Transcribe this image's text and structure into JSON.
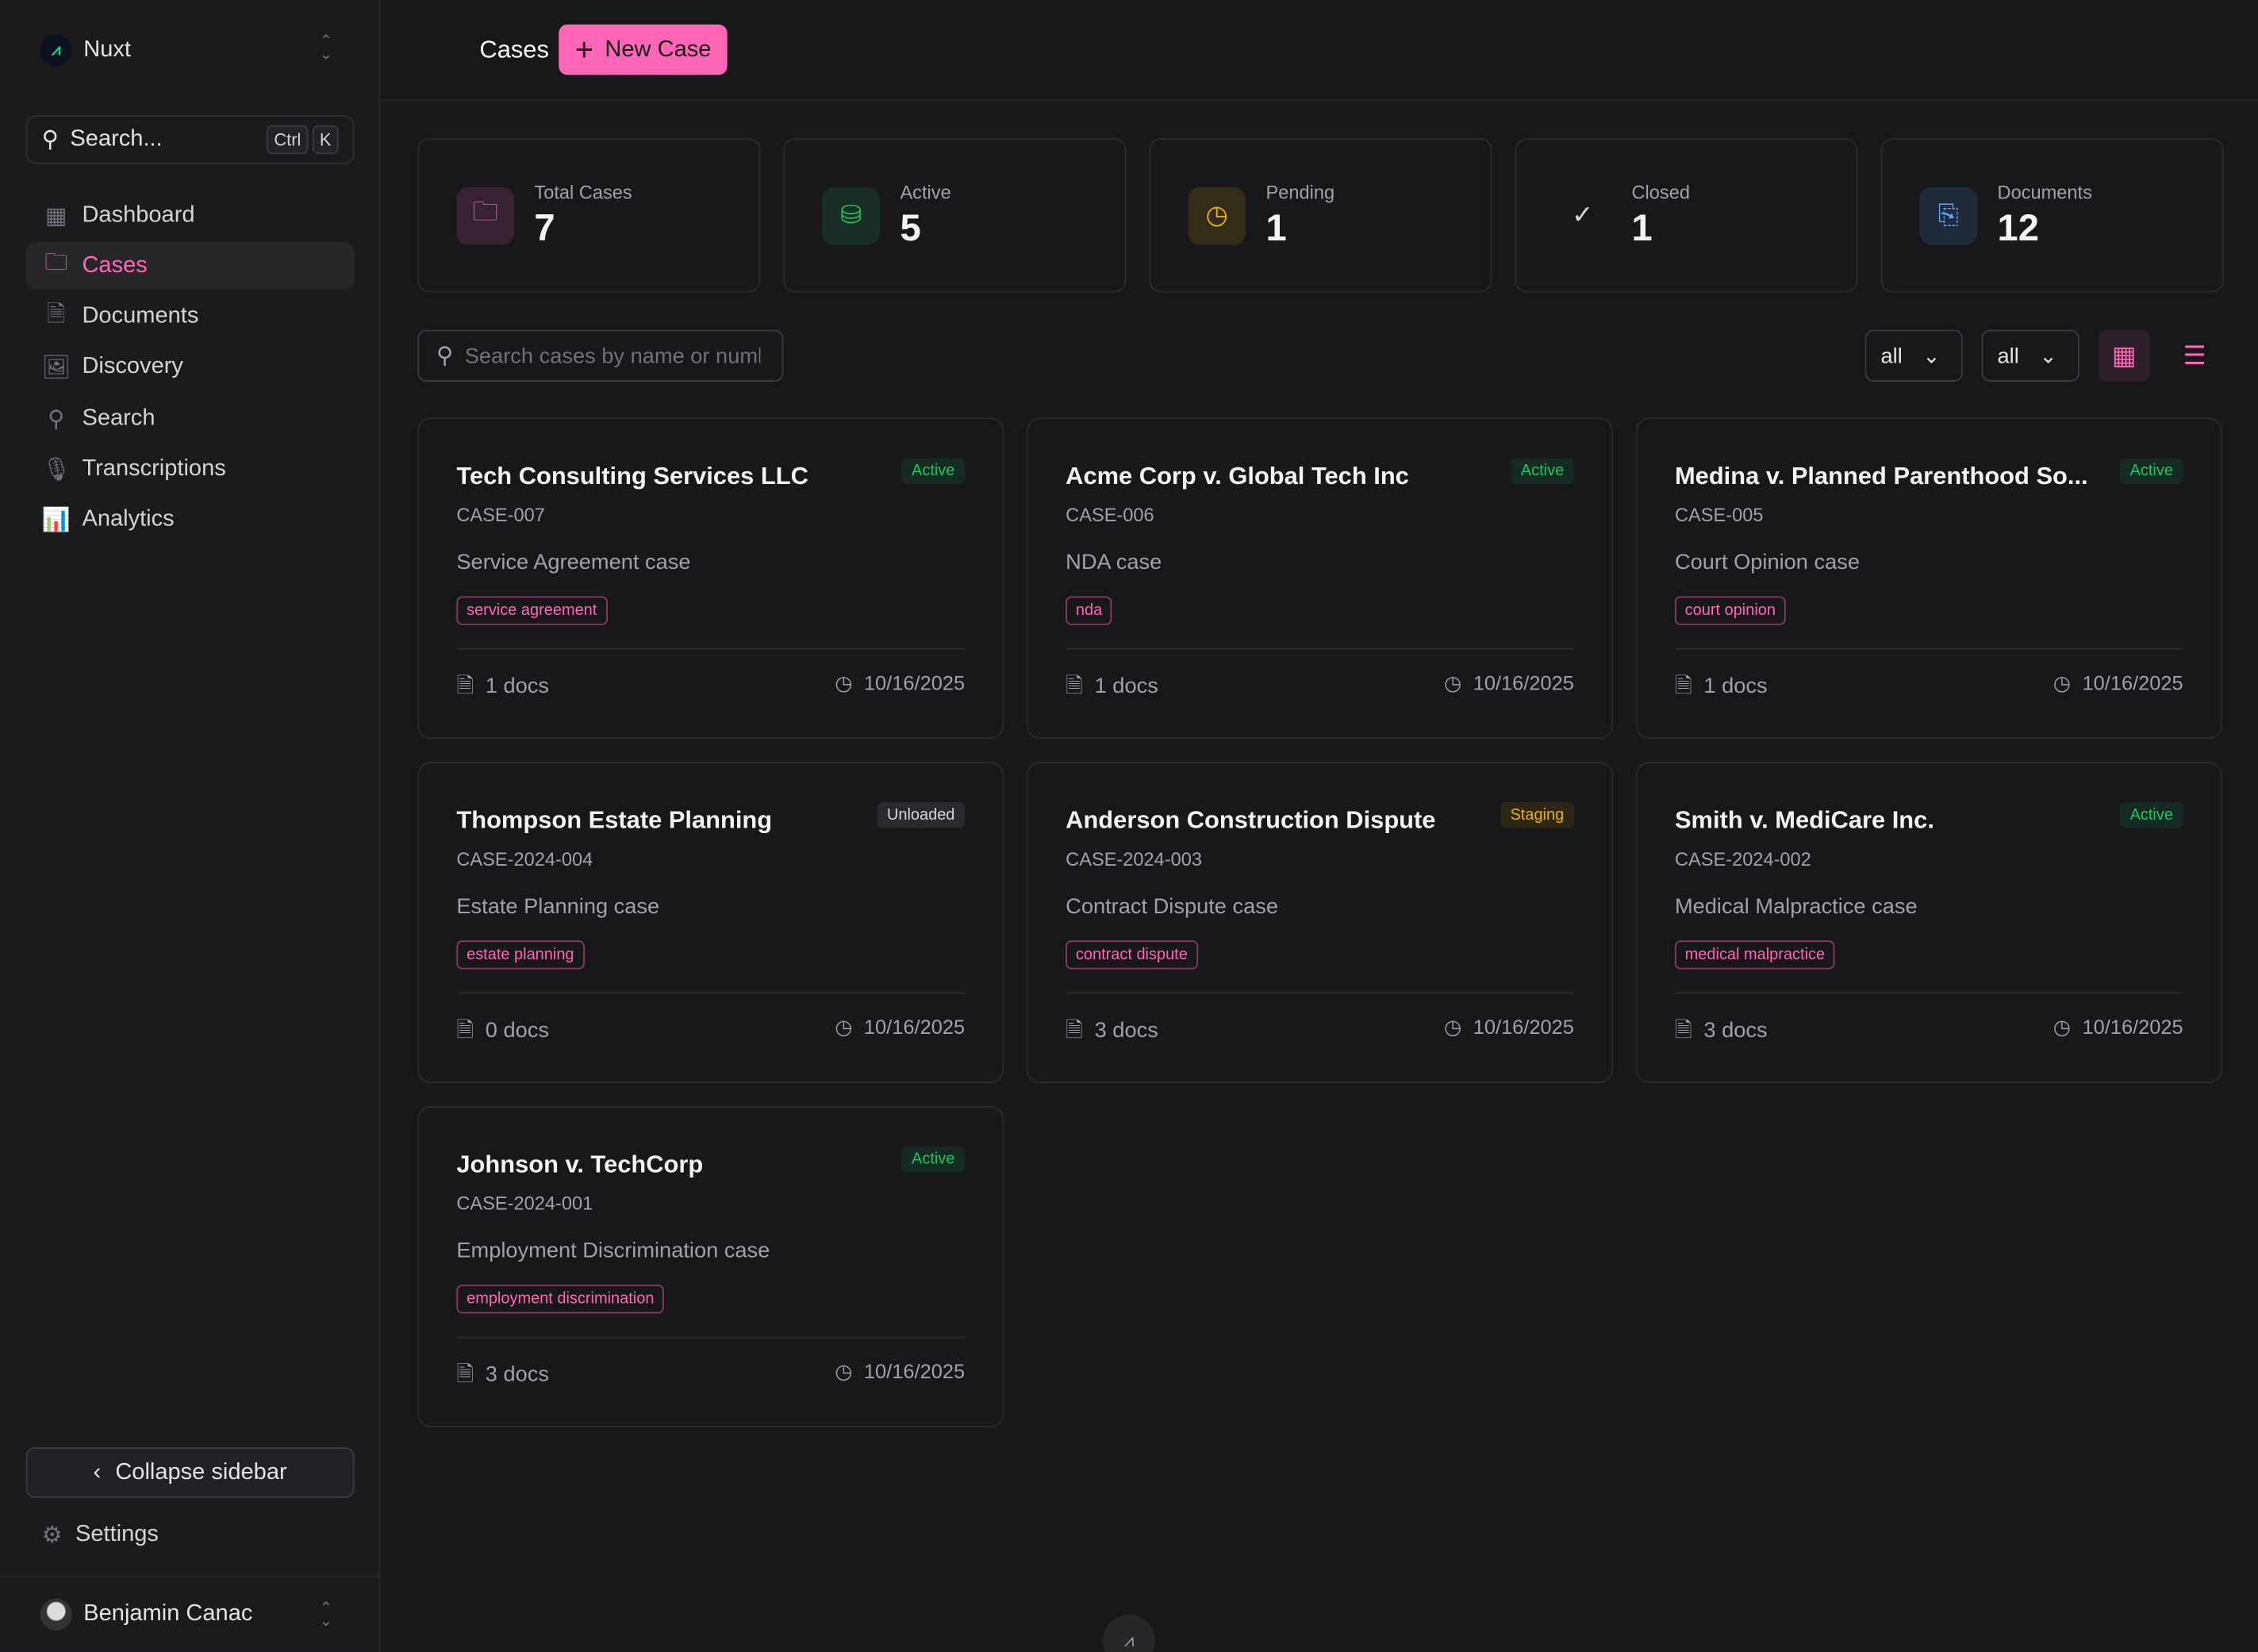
{
  "sidebar": {
    "brand": "Nuxt",
    "search": {
      "label": "Search...",
      "kbd": [
        "Ctrl",
        "K"
      ]
    },
    "items": [
      {
        "label": "Dashboard",
        "icon": "dashboard-icon"
      },
      {
        "label": "Cases",
        "icon": "folder-icon",
        "active": true
      },
      {
        "label": "Documents",
        "icon": "document-icon"
      },
      {
        "label": "Discovery",
        "icon": "image-icon"
      },
      {
        "label": "Search",
        "icon": "search-icon"
      },
      {
        "label": "Transcriptions",
        "icon": "microphone-icon"
      },
      {
        "label": "Analytics",
        "icon": "chart-icon"
      }
    ],
    "collapse_label": "Collapse sidebar",
    "settings_label": "Settings",
    "user": "Benjamin Canac"
  },
  "header": {
    "title": "Cases",
    "new_case_label": "New Case"
  },
  "stats": [
    {
      "label": "Total Cases",
      "value": "7",
      "color": "#ff66b8"
    },
    {
      "label": "Active",
      "value": "5",
      "color": "#22c55e"
    },
    {
      "label": "Pending",
      "value": "1",
      "color": "#eab308"
    },
    {
      "label": "Closed",
      "value": "1",
      "color": "#d4d4d8"
    },
    {
      "label": "Documents",
      "value": "12",
      "color": "#60a5fa"
    }
  ],
  "toolbar": {
    "search_placeholder": "Search cases by name or number...",
    "filter1": "all",
    "filter2": "all"
  },
  "cases": [
    {
      "title": "Tech Consulting Services LLC",
      "number": "CASE-007",
      "desc": "Service Agreement case",
      "tag": "service agreement",
      "status": "Active",
      "docs": "1 docs",
      "date": "10/16/2025"
    },
    {
      "title": "Acme Corp v. Global Tech Inc",
      "number": "CASE-006",
      "desc": "NDA case",
      "tag": "nda",
      "status": "Active",
      "docs": "1 docs",
      "date": "10/16/2025"
    },
    {
      "title": "Medina v. Planned Parenthood So...",
      "number": "CASE-005",
      "desc": "Court Opinion case",
      "tag": "court opinion",
      "status": "Active",
      "docs": "1 docs",
      "date": "10/16/2025"
    },
    {
      "title": "Thompson Estate Planning",
      "number": "CASE-2024-004",
      "desc": "Estate Planning case",
      "tag": "estate planning",
      "status": "Unloaded",
      "docs": "0 docs",
      "date": "10/16/2025"
    },
    {
      "title": "Anderson Construction Dispute",
      "number": "CASE-2024-003",
      "desc": "Contract Dispute case",
      "tag": "contract dispute",
      "status": "Staging",
      "docs": "3 docs",
      "date": "10/16/2025"
    },
    {
      "title": "Smith v. MediCare Inc.",
      "number": "CASE-2024-002",
      "desc": "Medical Malpractice case",
      "tag": "medical malpractice",
      "status": "Active",
      "docs": "3 docs",
      "date": "10/16/2025"
    },
    {
      "title": "Johnson v. TechCorp",
      "number": "CASE-2024-001",
      "desc": "Employment Discrimination case",
      "tag": "employment discrimination",
      "status": "Active",
      "docs": "3 docs",
      "date": "10/16/2025"
    }
  ]
}
